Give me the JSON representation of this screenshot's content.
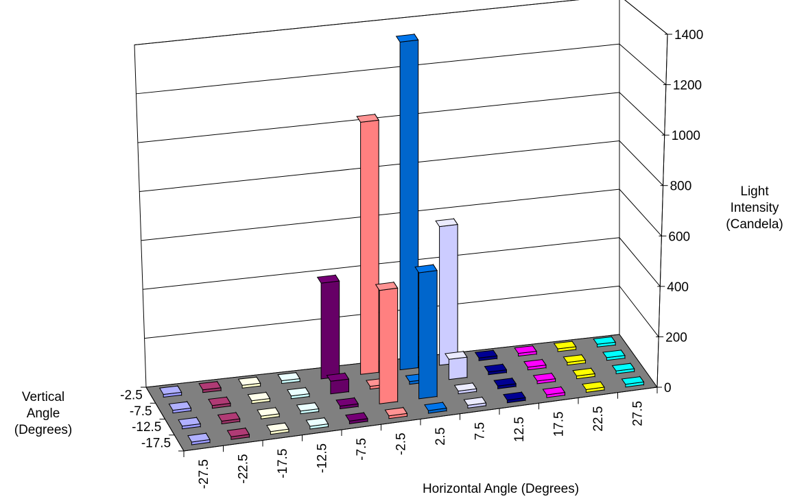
{
  "chart_data": {
    "type": "bar",
    "chart_subtype": "3d-column",
    "title": "",
    "xlabel": "Horizontal Angle (Degrees)",
    "ylabel": "Vertical Angle (Degrees)",
    "zlabel": "Light Intensity (Candela)",
    "zlabel_lines": [
      "Light",
      "Intensity",
      "(Candela)"
    ],
    "ylabel_lines": [
      "Vertical",
      "Angle",
      "(Degrees)"
    ],
    "zlim": [
      0,
      1400
    ],
    "z_ticks": [
      "0",
      "200",
      "400",
      "600",
      "800",
      "1000",
      "1200",
      "1400"
    ],
    "grid": true,
    "floor_color": "#808080",
    "x_categories": [
      "-27.5",
      "-22.5",
      "-17.5",
      "-12.5",
      "-7.5",
      "-2.5",
      "2.5",
      "7.5",
      "12.5",
      "17.5",
      "22.5",
      "27.5"
    ],
    "y_categories": [
      "-2.5",
      "-7.5",
      "-12.5",
      "-17.5"
    ],
    "series_colors": [
      "#9999FF",
      "#993366",
      "#FFFFCC",
      "#CCFFFF",
      "#660066",
      "#FF8080",
      "#0066CC",
      "#CCCCFF",
      "#000080",
      "#FF00FF",
      "#FFFF00",
      "#00FFFF"
    ],
    "values": [
      [
        0,
        0,
        0,
        0,
        380,
        1000,
        1300,
        550,
        0,
        0,
        0,
        0
      ],
      [
        0,
        0,
        0,
        0,
        50,
        0,
        0,
        80,
        0,
        0,
        0,
        0
      ],
      [
        0,
        0,
        0,
        0,
        0,
        450,
        500,
        0,
        0,
        0,
        0,
        0
      ],
      [
        0,
        0,
        0,
        0,
        0,
        0,
        0,
        0,
        0,
        0,
        0,
        0
      ]
    ]
  }
}
